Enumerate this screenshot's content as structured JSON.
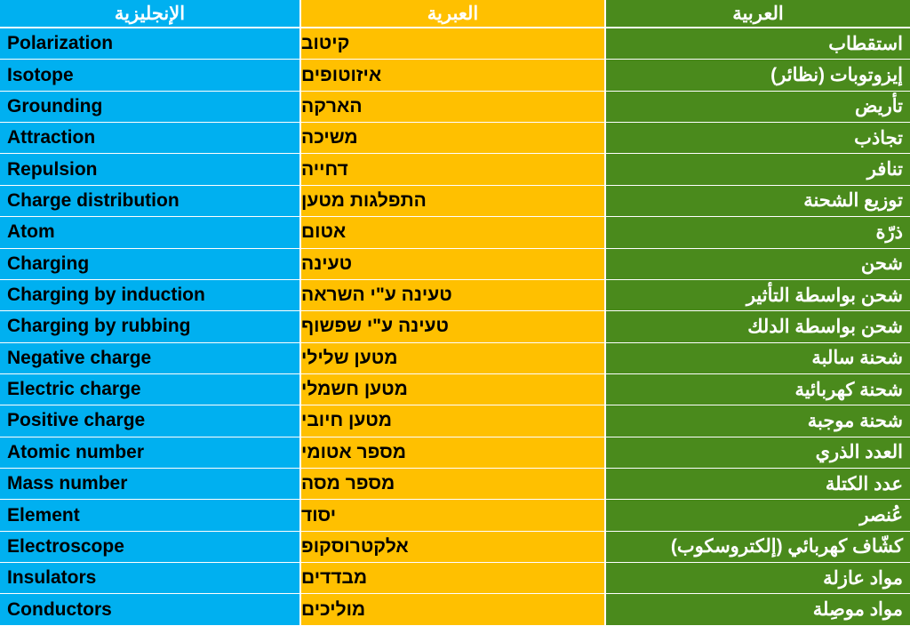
{
  "headers": {
    "english": "الإنجليزية",
    "hebrew": "العبرية",
    "arabic": "العربية"
  },
  "colors": {
    "english_column": "#00b0f0",
    "hebrew_column": "#ffc000",
    "arabic_column": "#4a8a1c"
  },
  "rows": [
    {
      "english": "Polarization",
      "hebrew": "קיטוב",
      "arabic": "استقطاب"
    },
    {
      "english": "Isotope",
      "hebrew": "איזוטופים",
      "arabic": "إيزوتوبات (نظائر)"
    },
    {
      "english": "Grounding",
      "hebrew": "הארקה",
      "arabic": "تأريض"
    },
    {
      "english": "Attraction",
      "hebrew": "משיכה",
      "arabic": "تجاذب"
    },
    {
      "english": "Repulsion",
      "hebrew": "דחייה",
      "arabic": "تنافر"
    },
    {
      "english": "Charge distribution",
      "hebrew": "התפלגות מטען",
      "arabic": "توزيع الشحنة"
    },
    {
      "english": "Atom",
      "hebrew": "אטום",
      "arabic": "ذرّة"
    },
    {
      "english": "Charging",
      "hebrew": "טעינה",
      "arabic": "شحن"
    },
    {
      "english": "Charging by induction",
      "hebrew": "טעינה ע\"י השראה",
      "arabic": "شحن بواسطة التأثير"
    },
    {
      "english": "Charging by rubbing",
      "hebrew": "טעינה ע\"י שפשוף",
      "arabic": "شحن بواسطة الدلك"
    },
    {
      "english": "Negative charge",
      "hebrew": "מטען שלילי",
      "arabic": "شحنة سالبة"
    },
    {
      "english": "Electric charge",
      "hebrew": "מטען חשמלי",
      "arabic": "شحنة كهربائية"
    },
    {
      "english": "Positive charge",
      "hebrew": "מטען חיובי",
      "arabic": "شحنة موجبة"
    },
    {
      "english": "Atomic number",
      "hebrew": "מספר אטומי",
      "arabic": "العدد الذري"
    },
    {
      "english": "Mass number",
      "hebrew": "מספר מסה",
      "arabic": "عدد الكتلة"
    },
    {
      "english": "Element",
      "hebrew": "יסוד",
      "arabic": "عُنصر"
    },
    {
      "english": "Electroscope",
      "hebrew": "אלקטרוסקופ",
      "arabic": "كشّاف كهربائي (إلكتروسكوب)"
    },
    {
      "english": "Insulators",
      "hebrew": "מבדדים",
      "arabic": "مواد عازلة"
    },
    {
      "english": "Conductors",
      "hebrew": "מוליכים",
      "arabic": "مواد موصِلة"
    }
  ]
}
